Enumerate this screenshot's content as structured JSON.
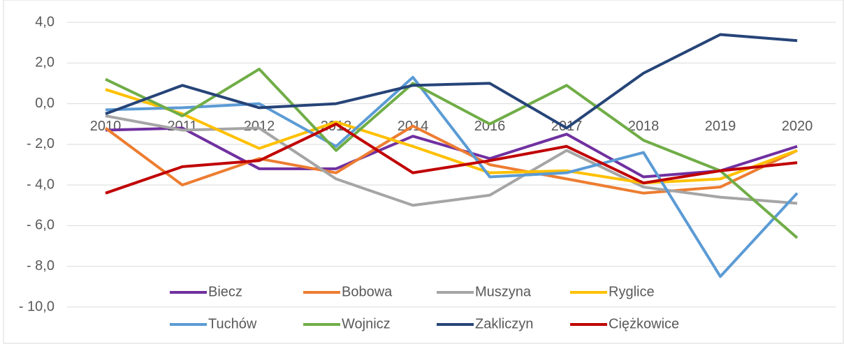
{
  "chart_data": {
    "type": "line",
    "categories": [
      "2010",
      "2011",
      "2012",
      "2013",
      "2014",
      "2016",
      "2017",
      "2018",
      "2019",
      "2020"
    ],
    "series": [
      {
        "name": "Biecz",
        "color": "#7030a0",
        "values": [
          -1.3,
          -1.2,
          -3.2,
          -3.2,
          -1.6,
          -2.7,
          -1.5,
          -3.6,
          -3.3,
          -2.1
        ]
      },
      {
        "name": "Bobowa",
        "color": "#ed7d31",
        "values": [
          -1.2,
          -4.0,
          -2.7,
          -3.4,
          -1.1,
          -3.0,
          -3.7,
          -4.4,
          -4.1,
          -2.3
        ]
      },
      {
        "name": "Muszyna",
        "color": "#a5a5a5",
        "values": [
          -0.6,
          -1.3,
          -1.2,
          -3.7,
          -5.0,
          -4.5,
          -2.3,
          -4.1,
          -4.6,
          -4.9
        ]
      },
      {
        "name": "Ryglice",
        "color": "#ffc000",
        "values": [
          0.7,
          -0.5,
          -2.2,
          -0.9,
          -2.1,
          -3.4,
          -3.3,
          -3.9,
          -3.7,
          -2.3
        ]
      },
      {
        "name": "Tuchów",
        "color": "#5b9bd5",
        "values": [
          -0.3,
          -0.2,
          0.0,
          -2.1,
          1.3,
          -3.6,
          -3.4,
          -2.4,
          -8.5,
          -4.4
        ]
      },
      {
        "name": "Wojnicz",
        "color": "#70ad47",
        "values": [
          1.2,
          -0.6,
          1.7,
          -2.3,
          1.0,
          -1.0,
          0.9,
          -1.8,
          -3.3,
          -6.6
        ]
      },
      {
        "name": "Zakliczyn",
        "color": "#264478",
        "values": [
          -0.5,
          0.9,
          -0.2,
          0.0,
          0.9,
          1.0,
          -1.2,
          1.5,
          3.4,
          3.1
        ]
      },
      {
        "name": "Ciężkowice",
        "color": "#c00000",
        "values": [
          -4.4,
          -3.1,
          -2.8,
          -1.0,
          -3.4,
          -2.8,
          -2.1,
          -3.9,
          -3.3,
          -2.9
        ]
      }
    ],
    "ylim": [
      -10,
      4
    ],
    "yticks": [
      {
        "value": 4,
        "label": "4,0"
      },
      {
        "value": 2,
        "label": "2,0"
      },
      {
        "value": 0,
        "label": "0,0"
      },
      {
        "value": -2,
        "label": "- 2,0"
      },
      {
        "value": -4,
        "label": "- 4,0"
      },
      {
        "value": -6,
        "label": "- 6,0"
      },
      {
        "value": -8,
        "label": "- 8,0"
      },
      {
        "value": -10,
        "label": "- 10,0"
      }
    ],
    "grid": true,
    "legend": "bottom"
  }
}
